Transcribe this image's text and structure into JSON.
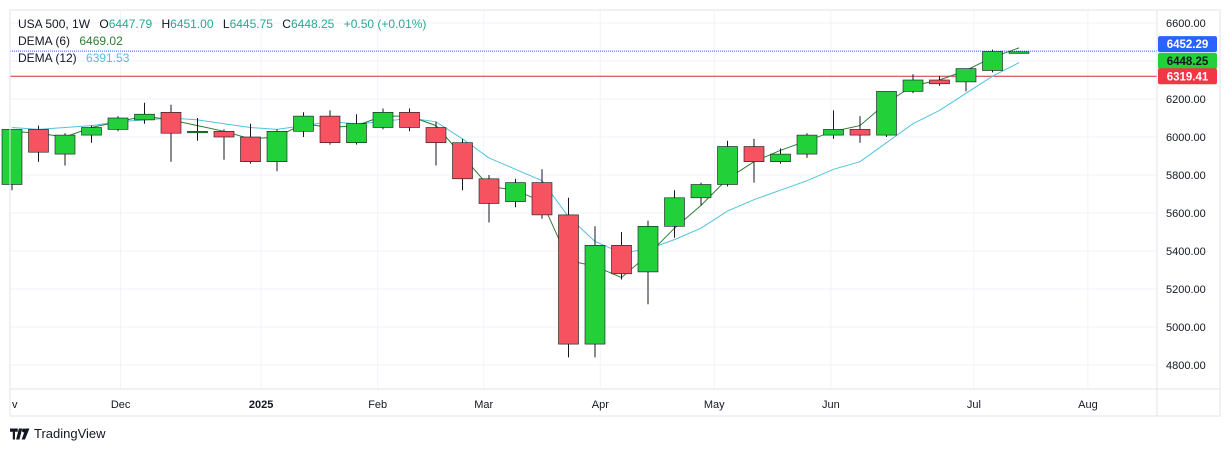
{
  "legend": {
    "symbol": "USA 500, 1W",
    "open_label": "O",
    "open": "6447.79",
    "high_label": "H",
    "high": "6451.00",
    "low_label": "L",
    "low": "6445.75",
    "close_label": "C",
    "close": "6448.25",
    "change": "+0.50 (+0.01%)",
    "dema6_label": "DEMA (6)",
    "dema6_value": "6469.02",
    "dema12_label": "DEMA (12)",
    "dema12_value": "6391.53"
  },
  "branding": {
    "name": "TradingView"
  },
  "colors": {
    "up": "#22d039",
    "down": "#f7525f",
    "wick": "#131722",
    "dema6": "#2e7d32",
    "dema12": "#4fc3dc",
    "price_line": "#2962ff",
    "level_line": "#d32f2f",
    "tag_blue": "#2962ff",
    "tag_green": "#22d039",
    "tag_red": "#f23645"
  },
  "chart_data": {
    "type": "candlestick",
    "ylim": [
      4700,
      6600
    ],
    "y_ticks": [
      "6600.00",
      "6400.00",
      "6200.00",
      "6000.00",
      "5800.00",
      "5600.00",
      "5400.00",
      "5200.00",
      "5000.00",
      "4800.00"
    ],
    "x_ticks": [
      {
        "label": "v",
        "week": -0.05
      },
      {
        "label": "Dec",
        "week": 4.1
      },
      {
        "label": "2025",
        "week": 9.4
      },
      {
        "label": "Feb",
        "week": 13.8
      },
      {
        "label": "Mar",
        "week": 17.8
      },
      {
        "label": "Apr",
        "week": 22.2
      },
      {
        "label": "May",
        "week": 26.5
      },
      {
        "label": "Jun",
        "week": 30.9
      },
      {
        "label": "Jul",
        "week": 36.3
      },
      {
        "label": "Aug",
        "week": 40.6
      }
    ],
    "candles": [
      {
        "o": 5750,
        "h": 6030,
        "l": 5720,
        "c": 6040
      },
      {
        "o": 6040,
        "h": 6060,
        "l": 5870,
        "c": 5920
      },
      {
        "o": 5910,
        "h": 6020,
        "l": 5850,
        "c": 6010
      },
      {
        "o": 6010,
        "h": 6060,
        "l": 5970,
        "c": 6050
      },
      {
        "o": 6040,
        "h": 6110,
        "l": 6030,
        "c": 6100
      },
      {
        "o": 6090,
        "h": 6180,
        "l": 6070,
        "c": 6120
      },
      {
        "o": 6130,
        "h": 6170,
        "l": 5870,
        "c": 6020
      },
      {
        "o": 6030,
        "h": 6100,
        "l": 5980,
        "c": 6030
      },
      {
        "o": 6030,
        "h": 6040,
        "l": 5880,
        "c": 6000
      },
      {
        "o": 6000,
        "h": 6070,
        "l": 5860,
        "c": 5870
      },
      {
        "o": 5870,
        "h": 6040,
        "l": 5820,
        "c": 6030
      },
      {
        "o": 6030,
        "h": 6130,
        "l": 6000,
        "c": 6110
      },
      {
        "o": 6110,
        "h": 6140,
        "l": 5960,
        "c": 5970
      },
      {
        "o": 5970,
        "h": 6120,
        "l": 5960,
        "c": 6070
      },
      {
        "o": 6050,
        "h": 6150,
        "l": 6040,
        "c": 6130
      },
      {
        "o": 6130,
        "h": 6150,
        "l": 6030,
        "c": 6050
      },
      {
        "o": 6050,
        "h": 6080,
        "l": 5850,
        "c": 5970
      },
      {
        "o": 5970,
        "h": 5990,
        "l": 5720,
        "c": 5780
      },
      {
        "o": 5780,
        "h": 5800,
        "l": 5550,
        "c": 5650
      },
      {
        "o": 5660,
        "h": 5780,
        "l": 5630,
        "c": 5760
      },
      {
        "o": 5760,
        "h": 5830,
        "l": 5570,
        "c": 5590
      },
      {
        "o": 5590,
        "h": 5680,
        "l": 4840,
        "c": 4910
      },
      {
        "o": 4910,
        "h": 5530,
        "l": 4840,
        "c": 5430
      },
      {
        "o": 5430,
        "h": 5500,
        "l": 5250,
        "c": 5280
      },
      {
        "o": 5290,
        "h": 5560,
        "l": 5120,
        "c": 5530
      },
      {
        "o": 5530,
        "h": 5720,
        "l": 5470,
        "c": 5680
      },
      {
        "o": 5680,
        "h": 5760,
        "l": 5640,
        "c": 5750
      },
      {
        "o": 5750,
        "h": 5980,
        "l": 5740,
        "c": 5950
      },
      {
        "o": 5950,
        "h": 5990,
        "l": 5760,
        "c": 5870
      },
      {
        "o": 5870,
        "h": 5940,
        "l": 5860,
        "c": 5910
      },
      {
        "o": 5910,
        "h": 6020,
        "l": 5890,
        "c": 6010
      },
      {
        "o": 6010,
        "h": 6140,
        "l": 5990,
        "c": 6040
      },
      {
        "o": 6040,
        "h": 6110,
        "l": 5970,
        "c": 6010
      },
      {
        "o": 6010,
        "h": 6230,
        "l": 6000,
        "c": 6240
      },
      {
        "o": 6240,
        "h": 6330,
        "l": 6230,
        "c": 6300
      },
      {
        "o": 6300,
        "h": 6320,
        "l": 6270,
        "c": 6280
      },
      {
        "o": 6290,
        "h": 6360,
        "l": 6240,
        "c": 6360
      },
      {
        "o": 6350,
        "h": 6460,
        "l": 6340,
        "c": 6450
      },
      {
        "o": 6447.79,
        "h": 6451.0,
        "l": 6445.75,
        "c": 6448.25
      }
    ],
    "dema6": [
      6030,
      6020,
      6000,
      6050,
      6080,
      6110,
      6090,
      6060,
      6030,
      5990,
      6000,
      6070,
      6050,
      6060,
      6110,
      6110,
      6060,
      5900,
      5740,
      5720,
      5660,
      5350,
      5320,
      5260,
      5380,
      5520,
      5640,
      5780,
      5870,
      5930,
      5980,
      6030,
      6060,
      6180,
      6270,
      6300,
      6350,
      6420,
      6469.02
    ],
    "dema12": [
      6050,
      6040,
      6050,
      6060,
      6080,
      6090,
      6100,
      6090,
      6070,
      6050,
      6040,
      6060,
      6080,
      6070,
      6080,
      6100,
      6080,
      5990,
      5890,
      5830,
      5770,
      5580,
      5450,
      5390,
      5410,
      5460,
      5520,
      5610,
      5670,
      5720,
      5770,
      5830,
      5870,
      5970,
      6070,
      6140,
      6230,
      6320,
      6391.53
    ],
    "price_lines": [
      {
        "label": "6452.29",
        "value": 6452.29,
        "kind": "blue"
      },
      {
        "label": "6448.25",
        "value": 6448.25,
        "kind": "green"
      },
      {
        "label": "6319.41",
        "value": 6319.41,
        "kind": "red"
      }
    ]
  }
}
